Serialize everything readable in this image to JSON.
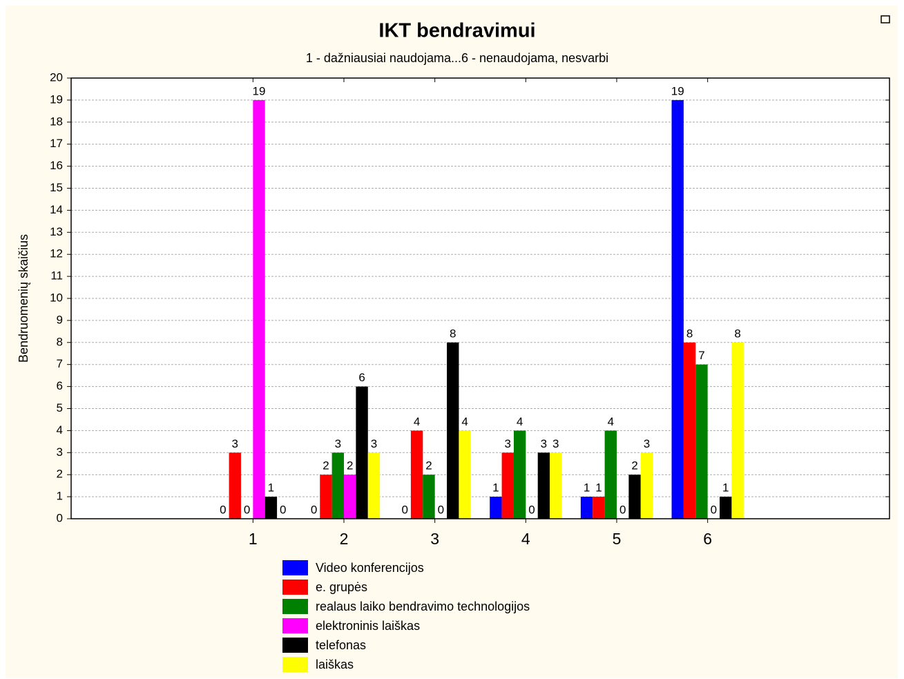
{
  "chart_data": {
    "type": "bar",
    "title": "IKT bendravimui",
    "subtitle": "1 - dažniausiai naudojama...6 - nenaudojama, nesvarbi",
    "ylabel": "Bendruomenių skaičius",
    "x": [
      1,
      2,
      3,
      4,
      5,
      6
    ],
    "xlim": [
      -1,
      8
    ],
    "xticks": [
      1,
      2,
      3,
      4,
      5,
      6
    ],
    "ylim": [
      0,
      20
    ],
    "yticks": [
      0,
      1,
      2,
      3,
      4,
      5,
      6,
      7,
      8,
      9,
      10,
      11,
      12,
      13,
      14,
      15,
      16,
      17,
      18,
      19,
      20
    ],
    "grid": true,
    "legend": "bottom",
    "series": [
      {
        "name": "Video konferencijos",
        "color": "#0000ff",
        "values": [
          0,
          0,
          0,
          1,
          1,
          19
        ]
      },
      {
        "name": "e. grupės",
        "color": "#ff0000",
        "values": [
          3,
          2,
          4,
          3,
          1,
          8
        ]
      },
      {
        "name": "realaus laiko bendravimo technologijos",
        "color": "#008000",
        "values": [
          0,
          3,
          2,
          4,
          4,
          7
        ]
      },
      {
        "name": "elektroninis laiškas",
        "color": "#ff00ff",
        "values": [
          19,
          2,
          0,
          0,
          0,
          0
        ]
      },
      {
        "name": "telefonas",
        "color": "#000000",
        "values": [
          1,
          6,
          8,
          3,
          2,
          1
        ]
      },
      {
        "name": "laiškas",
        "color": "#ffff00",
        "values": [
          0,
          3,
          4,
          3,
          3,
          8
        ]
      }
    ]
  }
}
